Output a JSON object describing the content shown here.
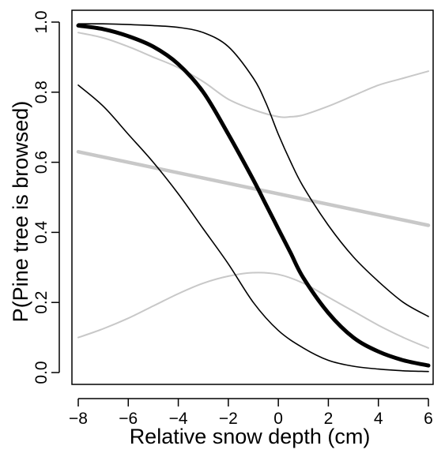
{
  "chart_data": {
    "type": "line",
    "title": "",
    "xlabel": "Relative snow depth (cm)",
    "ylabel": "P(Pine tree is browsed)",
    "xlim": [
      -8,
      6
    ],
    "ylim": [
      0,
      1
    ],
    "x_ticks": [
      -8,
      -6,
      -4,
      -2,
      0,
      2,
      4,
      6
    ],
    "y_ticks": [
      0.0,
      0.2,
      0.4,
      0.6,
      0.8,
      1.0
    ],
    "x_tick_labels": [
      "−8",
      "−6",
      "−4",
      "−2",
      "0",
      "2",
      "4",
      "6"
    ],
    "y_tick_labels": [
      "0.0",
      "0.2",
      "0.4",
      "0.6",
      "0.8",
      "1.0"
    ],
    "grid": false,
    "legend": "none",
    "series": [
      {
        "color": "#000000",
        "role": "fit",
        "x": [
          -8,
          -7,
          -6,
          -5,
          -4,
          -3,
          -2,
          -1,
          -0.5,
          0,
          0.5,
          1,
          2,
          3,
          4,
          5,
          6
        ],
        "y": [
          0.99,
          0.98,
          0.96,
          0.93,
          0.88,
          0.8,
          0.68,
          0.55,
          0.48,
          0.41,
          0.34,
          0.27,
          0.17,
          0.1,
          0.06,
          0.035,
          0.02
        ]
      },
      {
        "color": "#000000",
        "role": "upper-bound",
        "x": [
          -8,
          -7,
          -6,
          -5,
          -4,
          -3,
          -2,
          -1,
          -0.5,
          0,
          0.5,
          1,
          2,
          3,
          4,
          5,
          6
        ],
        "y": [
          0.995,
          0.995,
          0.993,
          0.99,
          0.985,
          0.97,
          0.93,
          0.84,
          0.77,
          0.68,
          0.6,
          0.53,
          0.42,
          0.33,
          0.26,
          0.2,
          0.16
        ]
      },
      {
        "color": "#000000",
        "role": "lower-bound",
        "x": [
          -8,
          -7,
          -6,
          -5,
          -4,
          -3,
          -2,
          -1,
          0,
          1,
          2,
          3,
          4,
          5,
          6
        ],
        "y": [
          0.82,
          0.76,
          0.68,
          0.6,
          0.51,
          0.41,
          0.31,
          0.2,
          0.12,
          0.07,
          0.035,
          0.018,
          0.01,
          0.005,
          0.003
        ]
      },
      {
        "color": "#c8c8c8",
        "role": "fit",
        "x": [
          -8,
          6
        ],
        "y": [
          0.63,
          0.42
        ]
      },
      {
        "color": "#c8c8c8",
        "role": "upper-bound",
        "x": [
          -8,
          -7,
          -6,
          -5,
          -4,
          -3,
          -2,
          -1,
          0,
          0.5,
          1,
          2,
          3,
          4,
          5,
          6
        ],
        "y": [
          0.97,
          0.955,
          0.93,
          0.9,
          0.87,
          0.83,
          0.78,
          0.75,
          0.73,
          0.73,
          0.735,
          0.76,
          0.79,
          0.82,
          0.84,
          0.86
        ]
      },
      {
        "color": "#c8c8c8",
        "role": "lower-bound",
        "x": [
          -8,
          -7,
          -6,
          -5,
          -4,
          -3,
          -2,
          -1,
          0,
          1,
          2,
          3,
          4,
          5,
          6
        ],
        "y": [
          0.1,
          0.125,
          0.155,
          0.19,
          0.225,
          0.255,
          0.275,
          0.285,
          0.28,
          0.255,
          0.215,
          0.175,
          0.135,
          0.1,
          0.07
        ]
      }
    ]
  }
}
